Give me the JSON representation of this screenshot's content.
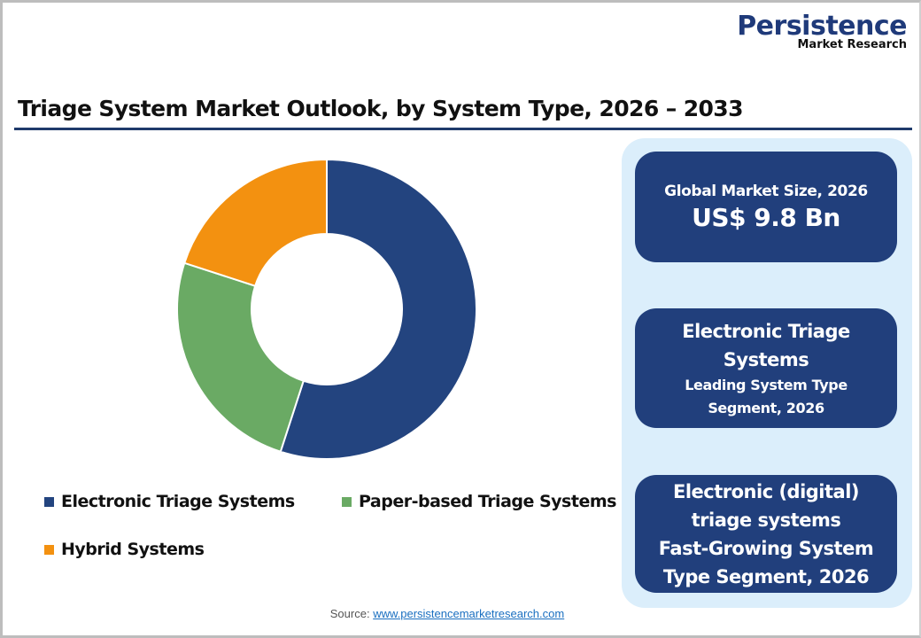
{
  "logo": {
    "main": "Persistence",
    "sub": "Market Research"
  },
  "title": "Triage System Market Outlook, by System Type, 2026 – 2033",
  "chart_data": {
    "type": "pie",
    "subtype": "donut",
    "title": "Triage System Market Outlook, by System Type, 2026 – 2033",
    "categories": [
      "Electronic Triage Systems",
      "Paper-based Triage Systems",
      "Hybrid Systems"
    ],
    "values": [
      55,
      25,
      20
    ],
    "unit": "% share (estimated from slice angles)",
    "colors": [
      "#23447f",
      "#6aaa64",
      "#f39110"
    ],
    "start_angle": "12 o'clock, clockwise",
    "legend_position": "bottom"
  },
  "legend": {
    "items": [
      {
        "label": "Electronic Triage Systems",
        "color": "#23447f"
      },
      {
        "label": "Paper-based Triage Systems",
        "color": "#6aaa64"
      },
      {
        "label": "Hybrid Systems",
        "color": "#f39110"
      }
    ]
  },
  "panel": {
    "card1": {
      "line1": "Global Market Size, 2026",
      "line2": "US$ 9.8 Bn"
    },
    "card2": {
      "line1": "Electronic Triage",
      "line2": "Systems",
      "line3": "Leading System Type",
      "line4": "Segment, 2026"
    },
    "card3": {
      "line1": "Electronic (digital)",
      "line2": "triage systems",
      "line3": "Fast-Growing System",
      "line4": "Type Segment, 2026"
    }
  },
  "source": {
    "label": "Source: ",
    "link": "www.persistencemarketresearch.com"
  },
  "colors": {
    "brand_navy": "#213f7c",
    "panel_bg": "#dbeefb",
    "title_rule": "#1f3a6b"
  }
}
